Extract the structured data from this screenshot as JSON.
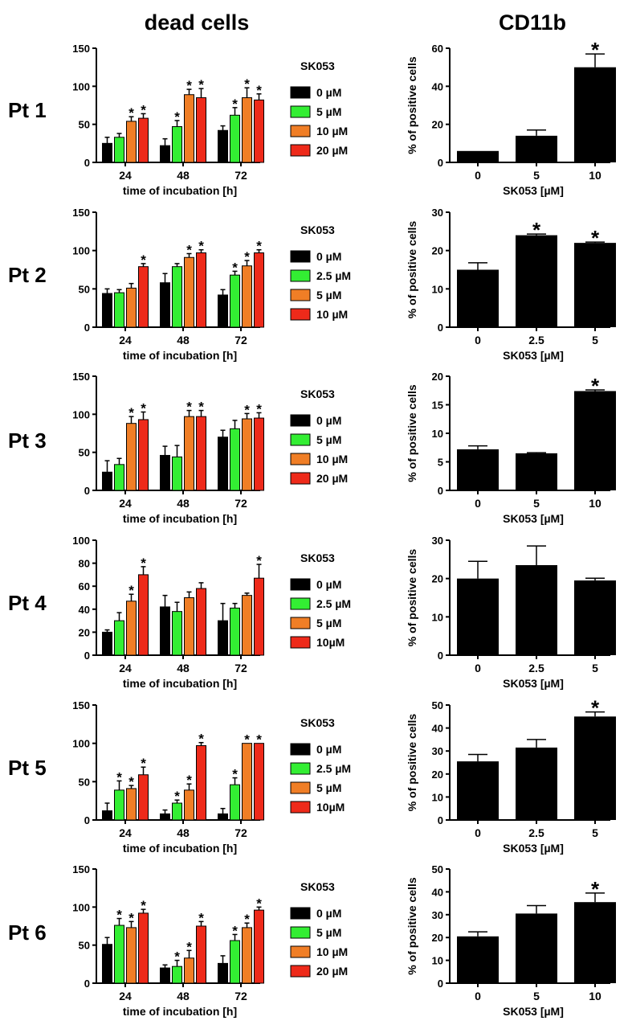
{
  "headers": {
    "left": "dead cells",
    "right": "CD11b"
  },
  "colors": {
    "c0": "#000000",
    "c1": "#33ee33",
    "c2": "#f07e26",
    "c3": "#ee2a1a"
  },
  "chart_data": [
    {
      "type": "bar",
      "patient": "Pt 1",
      "panel": "dead cells",
      "categories": [
        "24",
        "48",
        "72"
      ],
      "xlabel": "time of incubation [h]",
      "ylabel": "",
      "ylim": [
        0,
        150
      ],
      "yticks": [
        0,
        50,
        100,
        150
      ],
      "legend_title": "SK053",
      "series": [
        {
          "name": "0 µM",
          "values": [
            25,
            22,
            42
          ],
          "errors": [
            8,
            9,
            6
          ],
          "sig": [
            false,
            false,
            false
          ]
        },
        {
          "name": "5 µM",
          "values": [
            33,
            47,
            62
          ],
          "errors": [
            5,
            8,
            10
          ],
          "sig": [
            false,
            true,
            true
          ]
        },
        {
          "name": "10 µM",
          "values": [
            54,
            89,
            85
          ],
          "errors": [
            6,
            7,
            13
          ],
          "sig": [
            true,
            true,
            true
          ]
        },
        {
          "name": "20 µM",
          "values": [
            58,
            85,
            82
          ],
          "errors": [
            6,
            12,
            8
          ],
          "sig": [
            true,
            true,
            true
          ]
        }
      ]
    },
    {
      "type": "bar",
      "patient": "Pt 1",
      "panel": "CD11b",
      "categories": [
        "0",
        "5",
        "10"
      ],
      "xlabel": "SK053 [µM]",
      "ylabel": "% of positive cells",
      "ylim": [
        0,
        60
      ],
      "yticks": [
        0,
        20,
        40,
        60
      ],
      "values": [
        6,
        14,
        50
      ],
      "errors": [
        0,
        3,
        7
      ],
      "sig": [
        false,
        false,
        true
      ]
    },
    {
      "type": "bar",
      "patient": "Pt 2",
      "panel": "dead cells",
      "categories": [
        "24",
        "48",
        "72"
      ],
      "xlabel": "time of incubation [h]",
      "ylabel": "",
      "ylim": [
        0,
        150
      ],
      "yticks": [
        0,
        50,
        100,
        150
      ],
      "legend_title": "SK053",
      "series": [
        {
          "name": "0 µM",
          "values": [
            44,
            58,
            42
          ],
          "errors": [
            6,
            12,
            7
          ],
          "sig": [
            false,
            false,
            false
          ]
        },
        {
          "name": "2.5 µM",
          "values": [
            45,
            79,
            68
          ],
          "errors": [
            4,
            4,
            5
          ],
          "sig": [
            false,
            false,
            true
          ]
        },
        {
          "name": "5 µM",
          "values": [
            51,
            91,
            80
          ],
          "errors": [
            6,
            5,
            7
          ],
          "sig": [
            false,
            true,
            true
          ]
        },
        {
          "name": "10 µM",
          "values": [
            79,
            97,
            97
          ],
          "errors": [
            4,
            4,
            4
          ],
          "sig": [
            true,
            true,
            true
          ]
        }
      ]
    },
    {
      "type": "bar",
      "patient": "Pt 2",
      "panel": "CD11b",
      "categories": [
        "0",
        "2.5",
        "5"
      ],
      "xlabel": "SK053 [µM]",
      "ylabel": "% of positive cells",
      "ylim": [
        0,
        30
      ],
      "yticks": [
        0,
        10,
        20,
        30
      ],
      "values": [
        15,
        24,
        22
      ],
      "errors": [
        1.8,
        0.3,
        0.2
      ],
      "sig": [
        false,
        true,
        true
      ]
    },
    {
      "type": "bar",
      "patient": "Pt 3",
      "panel": "dead cells",
      "categories": [
        "24",
        "48",
        "72"
      ],
      "xlabel": "time of incubation [h]",
      "ylabel": "",
      "ylim": [
        0,
        150
      ],
      "yticks": [
        0,
        50,
        100,
        150
      ],
      "legend_title": "SK053",
      "series": [
        {
          "name": "0 µM",
          "values": [
            24,
            46,
            70
          ],
          "errors": [
            15,
            12,
            9
          ],
          "sig": [
            false,
            false,
            false
          ]
        },
        {
          "name": "5 µM",
          "values": [
            34,
            44,
            81
          ],
          "errors": [
            8,
            15,
            11
          ],
          "sig": [
            false,
            false,
            false
          ]
        },
        {
          "name": "10 µM",
          "values": [
            88,
            97,
            94
          ],
          "errors": [
            9,
            8,
            7
          ],
          "sig": [
            true,
            true,
            true
          ]
        },
        {
          "name": "20 µM",
          "values": [
            93,
            97,
            95
          ],
          "errors": [
            10,
            8,
            7
          ],
          "sig": [
            true,
            true,
            true
          ]
        }
      ]
    },
    {
      "type": "bar",
      "patient": "Pt 3",
      "panel": "CD11b",
      "categories": [
        "0",
        "5",
        "10"
      ],
      "xlabel": "SK053 [µM]",
      "ylabel": "% of positive cells",
      "ylim": [
        0,
        20
      ],
      "yticks": [
        0,
        5,
        10,
        15,
        20
      ],
      "values": [
        7.2,
        6.5,
        17.4
      ],
      "errors": [
        0.6,
        0.1,
        0.2
      ],
      "sig": [
        false,
        false,
        true
      ]
    },
    {
      "type": "bar",
      "patient": "Pt 4",
      "panel": "dead cells",
      "categories": [
        "24",
        "48",
        "72"
      ],
      "xlabel": "time of incubation [h]",
      "ylabel": "",
      "ylim": [
        0,
        100
      ],
      "yticks": [
        0,
        20,
        40,
        60,
        80,
        100
      ],
      "legend_title": "SK053",
      "series": [
        {
          "name": "0 µM",
          "values": [
            20,
            42,
            30
          ],
          "errors": [
            2,
            10,
            15
          ],
          "sig": [
            false,
            false,
            false
          ]
        },
        {
          "name": "2.5 µM",
          "values": [
            30,
            38,
            41
          ],
          "errors": [
            7,
            8,
            4
          ],
          "sig": [
            false,
            false,
            false
          ]
        },
        {
          "name": "5 µM",
          "values": [
            47,
            50,
            52
          ],
          "errors": [
            6,
            5,
            2
          ],
          "sig": [
            true,
            false,
            false
          ]
        },
        {
          "name": "10µM",
          "values": [
            70,
            58,
            67
          ],
          "errors": [
            7,
            5,
            12
          ],
          "sig": [
            true,
            false,
            true
          ]
        }
      ]
    },
    {
      "type": "bar",
      "patient": "Pt 4",
      "panel": "CD11b",
      "categories": [
        "0",
        "2.5",
        "5"
      ],
      "xlabel": "SK053 [µM]",
      "ylabel": "% of positive cells",
      "ylim": [
        0,
        30
      ],
      "yticks": [
        0,
        10,
        20,
        30
      ],
      "values": [
        20,
        23.5,
        19.5
      ],
      "errors": [
        4.5,
        5,
        0.6
      ],
      "sig": [
        false,
        false,
        false
      ]
    },
    {
      "type": "bar",
      "patient": "Pt 5",
      "panel": "dead cells",
      "categories": [
        "24",
        "48",
        "72"
      ],
      "xlabel": "time of incubation [h]",
      "ylabel": "",
      "ylim": [
        0,
        150
      ],
      "yticks": [
        0,
        50,
        100,
        150
      ],
      "legend_title": "SK053",
      "series": [
        {
          "name": "0 µM",
          "values": [
            12,
            8,
            8
          ],
          "errors": [
            10,
            5,
            7
          ],
          "sig": [
            false,
            false,
            false
          ]
        },
        {
          "name": "2.5 µM",
          "values": [
            39,
            22,
            46
          ],
          "errors": [
            12,
            4,
            9
          ],
          "sig": [
            true,
            true,
            true
          ]
        },
        {
          "name": "5 µM",
          "values": [
            41,
            39,
            100
          ],
          "errors": [
            4,
            8,
            0
          ],
          "sig": [
            true,
            true,
            true
          ]
        },
        {
          "name": "10µM",
          "values": [
            59,
            97,
            100
          ],
          "errors": [
            10,
            4,
            0
          ],
          "sig": [
            true,
            true,
            true
          ]
        }
      ]
    },
    {
      "type": "bar",
      "patient": "Pt 5",
      "panel": "CD11b",
      "categories": [
        "0",
        "2.5",
        "5"
      ],
      "xlabel": "SK053 [µM]",
      "ylabel": "% of positive cells",
      "ylim": [
        0,
        50
      ],
      "yticks": [
        0,
        10,
        20,
        30,
        40,
        50
      ],
      "values": [
        25.5,
        31.5,
        45
      ],
      "errors": [
        3,
        3.5,
        2
      ],
      "sig": [
        false,
        false,
        true
      ]
    },
    {
      "type": "bar",
      "patient": "Pt 6",
      "panel": "dead cells",
      "categories": [
        "24",
        "48",
        "72"
      ],
      "xlabel": "time of incubation [h]",
      "ylabel": "",
      "ylim": [
        0,
        150
      ],
      "yticks": [
        0,
        50,
        100,
        150
      ],
      "legend_title": "SK053",
      "series": [
        {
          "name": "0 µM",
          "values": [
            51,
            20,
            26
          ],
          "errors": [
            9,
            4,
            10
          ],
          "sig": [
            false,
            false,
            false
          ]
        },
        {
          "name": "5 µM",
          "values": [
            76,
            22,
            56
          ],
          "errors": [
            9,
            8,
            8
          ],
          "sig": [
            true,
            true,
            true
          ]
        },
        {
          "name": "10 µM",
          "values": [
            73,
            33,
            73
          ],
          "errors": [
            8,
            10,
            6
          ],
          "sig": [
            true,
            true,
            true
          ]
        },
        {
          "name": "20 µM",
          "values": [
            92,
            75,
            96
          ],
          "errors": [
            5,
            6,
            4
          ],
          "sig": [
            true,
            true,
            true
          ]
        }
      ]
    },
    {
      "type": "bar",
      "patient": "Pt 6",
      "panel": "CD11b",
      "categories": [
        "0",
        "5",
        "10"
      ],
      "xlabel": "SK053 [µM]",
      "ylabel": "% of positive cells",
      "ylim": [
        0,
        50
      ],
      "yticks": [
        0,
        10,
        20,
        30,
        40,
        50
      ],
      "values": [
        20.5,
        30.5,
        35.5
      ],
      "errors": [
        2,
        3.5,
        4
      ],
      "sig": [
        false,
        false,
        true
      ]
    }
  ]
}
